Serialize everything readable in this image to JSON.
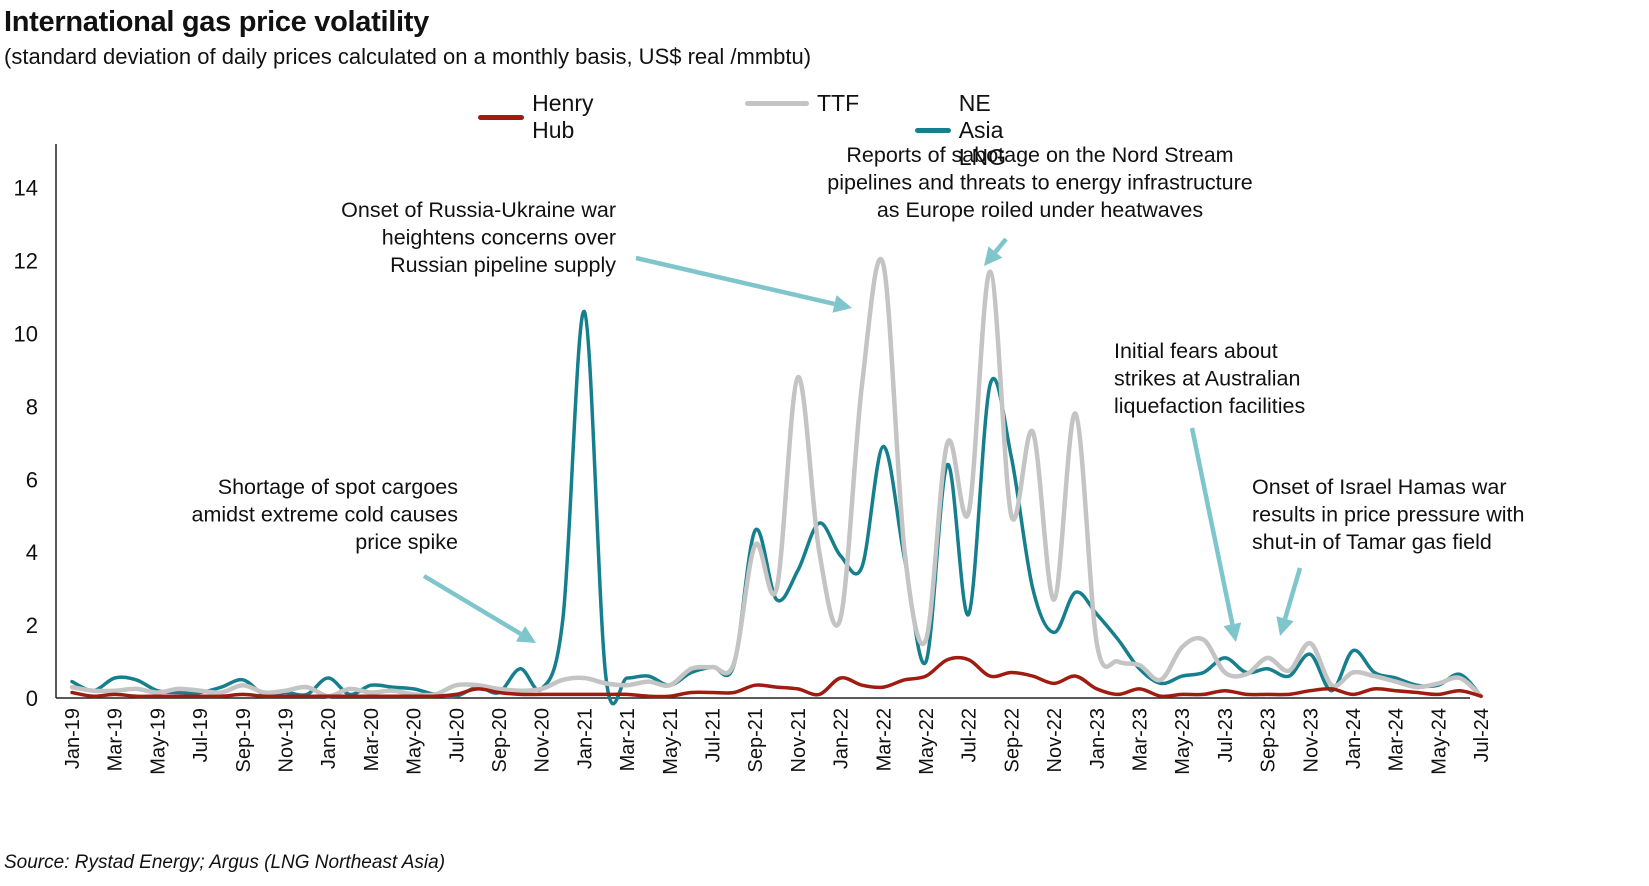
{
  "title": "International gas price volatility",
  "subtitle": "(standard deviation of daily prices calculated on a monthly basis, US$ real /mmbtu)",
  "source": "Source: Rystad Energy; Argus (LNG Northeast Asia)",
  "chart_data": {
    "type": "line",
    "ylim": [
      0,
      15
    ],
    "yticks": [
      0,
      2,
      4,
      6,
      8,
      10,
      12,
      14
    ],
    "grid": false,
    "legend_position": "top-center",
    "x_tick_labels": [
      "Jan-19",
      "Mar-19",
      "May-19",
      "Jul-19",
      "Sep-19",
      "Nov-19",
      "Jan-20",
      "Mar-20",
      "May-20",
      "Jul-20",
      "Sep-20",
      "Nov-20",
      "Jan-21",
      "Mar-21",
      "May-21",
      "Jul-21",
      "Sep-21",
      "Nov-21",
      "Jan-22",
      "Mar-22",
      "May-22",
      "Jul-22",
      "Sep-22",
      "Nov-22",
      "Jan-23",
      "Mar-23",
      "May-23",
      "Jul-23",
      "Sep-23",
      "Nov-23",
      "Jan-24",
      "Mar-24",
      "May-24",
      "Jul-24"
    ],
    "x": [
      "Jan-19",
      "Feb-19",
      "Mar-19",
      "Apr-19",
      "May-19",
      "Jun-19",
      "Jul-19",
      "Aug-19",
      "Sep-19",
      "Oct-19",
      "Nov-19",
      "Dec-19",
      "Jan-20",
      "Feb-20",
      "Mar-20",
      "Apr-20",
      "May-20",
      "Jun-20",
      "Jul-20",
      "Aug-20",
      "Sep-20",
      "Oct-20",
      "Nov-20",
      "Dec-20",
      "Jan-21",
      "Feb-21",
      "Mar-21",
      "Apr-21",
      "May-21",
      "Jun-21",
      "Jul-21",
      "Aug-21",
      "Sep-21",
      "Oct-21",
      "Nov-21",
      "Dec-21",
      "Jan-22",
      "Feb-22",
      "Mar-22",
      "Apr-22",
      "May-22",
      "Jun-22",
      "Jul-22",
      "Aug-22",
      "Sep-22",
      "Oct-22",
      "Nov-22",
      "Dec-22",
      "Jan-23",
      "Feb-23",
      "Mar-23",
      "Apr-23",
      "May-23",
      "Jun-23",
      "Jul-23",
      "Aug-23",
      "Sep-23",
      "Oct-23",
      "Nov-23",
      "Dec-23",
      "Jan-24",
      "Feb-24",
      "Mar-24",
      "Apr-24",
      "May-24",
      "Jun-24",
      "Jul-24"
    ],
    "series": [
      {
        "name": "Henry Hub",
        "color": "#a01c10",
        "values": [
          0.15,
          0.05,
          0.1,
          0.05,
          0.05,
          0.05,
          0.05,
          0.05,
          0.1,
          0.05,
          0.05,
          0.05,
          0.05,
          0.05,
          0.05,
          0.05,
          0.05,
          0.05,
          0.1,
          0.25,
          0.15,
          0.1,
          0.1,
          0.1,
          0.1,
          0.1,
          0.1,
          0.05,
          0.05,
          0.15,
          0.15,
          0.15,
          0.35,
          0.3,
          0.25,
          0.1,
          0.55,
          0.35,
          0.3,
          0.5,
          0.6,
          1.05,
          1.05,
          0.6,
          0.7,
          0.6,
          0.4,
          0.6,
          0.25,
          0.1,
          0.25,
          0.05,
          0.1,
          0.1,
          0.2,
          0.1,
          0.1,
          0.1,
          0.2,
          0.25,
          0.1,
          0.25,
          0.2,
          0.15,
          0.1,
          0.2,
          0.05
        ]
      },
      {
        "name": "TTF",
        "color": "#c4c4c4",
        "values": [
          0.3,
          0.2,
          0.2,
          0.25,
          0.15,
          0.25,
          0.2,
          0.15,
          0.35,
          0.15,
          0.2,
          0.3,
          0.05,
          0.25,
          0.15,
          0.2,
          0.1,
          0.1,
          0.35,
          0.35,
          0.25,
          0.2,
          0.25,
          0.5,
          0.55,
          0.4,
          0.35,
          0.45,
          0.35,
          0.8,
          0.85,
          0.95,
          4.2,
          3.0,
          8.8,
          4.0,
          2.2,
          8.6,
          11.9,
          4.0,
          1.6,
          7.0,
          5.1,
          11.7,
          5.0,
          7.3,
          2.7,
          7.8,
          1.5,
          1.0,
          0.9,
          0.5,
          1.4,
          1.6,
          0.7,
          0.65,
          1.1,
          0.75,
          1.5,
          0.35,
          0.7,
          0.6,
          0.45,
          0.3,
          0.4,
          0.55,
          0.05
        ]
      },
      {
        "name": "NE Asia LNG",
        "color": "#167f8e",
        "values": [
          0.45,
          0.2,
          0.55,
          0.5,
          0.2,
          0.15,
          0.15,
          0.3,
          0.5,
          0.1,
          0.15,
          0.1,
          0.55,
          0.1,
          0.35,
          0.3,
          0.25,
          0.1,
          0.05,
          0.3,
          0.15,
          0.8,
          0.25,
          2.2,
          10.6,
          0.6,
          0.55,
          0.6,
          0.35,
          0.7,
          0.85,
          0.9,
          4.6,
          2.7,
          3.5,
          4.8,
          3.9,
          3.6,
          6.9,
          3.8,
          1.0,
          6.4,
          2.3,
          8.6,
          6.6,
          3.0,
          1.8,
          2.9,
          2.3,
          1.6,
          0.8,
          0.4,
          0.6,
          0.7,
          1.1,
          0.7,
          0.8,
          0.6,
          1.2,
          0.2,
          1.3,
          0.7,
          0.55,
          0.35,
          0.35,
          0.65,
          0.05
        ]
      }
    ],
    "annotations": [
      {
        "id": "cold-spike",
        "lines": [
          "Shortage of spot cargoes",
          "amidst extreme cold causes",
          "price spike"
        ]
      },
      {
        "id": "russia-ukraine",
        "lines": [
          "Onset of Russia-Ukraine war",
          "heightens concerns over",
          "Russian pipeline supply"
        ]
      },
      {
        "id": "nord-stream",
        "lines": [
          "Reports of sabotage on the Nord Stream",
          "pipelines and threats to energy infrastructure",
          "as Europe roiled under heatwaves"
        ]
      },
      {
        "id": "australia-strikes",
        "lines": [
          "Initial fears about",
          "strikes at Australian",
          "liquefaction facilities"
        ]
      },
      {
        "id": "israel-hamas",
        "lines": [
          "Onset of Israel Hamas war",
          "results in price pressure with",
          "shut-in of Tamar gas field"
        ]
      }
    ]
  },
  "colors": {
    "arrow": "#7fc6cc",
    "axis": "#222222"
  }
}
